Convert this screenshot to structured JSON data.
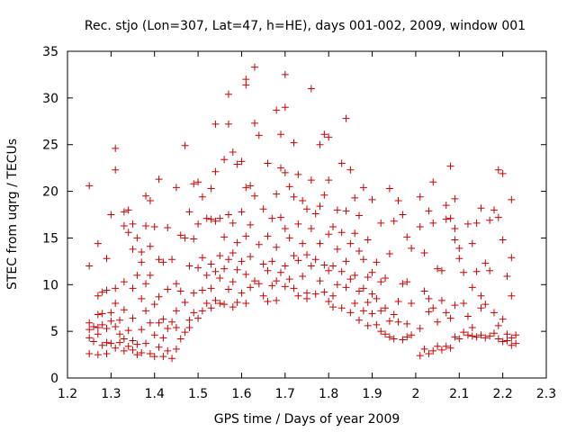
{
  "chart_data": {
    "type": "scatter",
    "title": "Rec. stjo (Lon=307, Lat=47, h=HE), days 001-002, 2009, window 001",
    "xlabel": "GPS time / Days of year 2009",
    "ylabel": "STEC from uqrg / TECUs",
    "xlim": [
      1.2,
      2.3
    ],
    "ylim": [
      0,
      35
    ],
    "x_ticks": [
      "1.2",
      "1.3",
      "1.4",
      "1.5",
      "1.6",
      "1.7",
      "1.8",
      "1.9",
      "2",
      "2.1",
      "2.2",
      "2.3"
    ],
    "y_ticks": [
      "0",
      "5",
      "10",
      "15",
      "20",
      "25",
      "30",
      "35"
    ],
    "marker": "+",
    "marker_color": "#cc0000",
    "grid": false,
    "legend": "none",
    "points": [
      [
        1.25,
        20.6
      ],
      [
        1.25,
        12.0
      ],
      [
        1.25,
        5.9
      ],
      [
        1.25,
        5.2
      ],
      [
        1.25,
        4.3
      ],
      [
        1.25,
        2.6
      ],
      [
        1.26,
        5.5
      ],
      [
        1.26,
        3.9
      ],
      [
        1.27,
        14.4
      ],
      [
        1.27,
        8.8
      ],
      [
        1.27,
        6.8
      ],
      [
        1.27,
        5.4
      ],
      [
        1.27,
        4.7
      ],
      [
        1.27,
        2.5
      ],
      [
        1.28,
        9.2
      ],
      [
        1.28,
        6.9
      ],
      [
        1.28,
        5.7
      ],
      [
        1.28,
        3.5
      ],
      [
        1.29,
        12.8
      ],
      [
        1.29,
        9.4
      ],
      [
        1.29,
        5.3
      ],
      [
        1.29,
        3.8
      ],
      [
        1.29,
        2.6
      ],
      [
        1.3,
        17.5
      ],
      [
        1.3,
        7.0
      ],
      [
        1.3,
        6.1
      ],
      [
        1.3,
        3.7
      ],
      [
        1.31,
        24.6
      ],
      [
        1.31,
        22.3
      ],
      [
        1.31,
        9.6
      ],
      [
        1.31,
        8.0
      ],
      [
        1.31,
        5.5
      ],
      [
        1.31,
        3.2
      ],
      [
        1.32,
        6.2
      ],
      [
        1.32,
        4.7
      ],
      [
        1.32,
        3.8
      ],
      [
        1.33,
        17.8
      ],
      [
        1.33,
        16.3
      ],
      [
        1.33,
        10.3
      ],
      [
        1.33,
        7.3
      ],
      [
        1.33,
        4.2
      ],
      [
        1.33,
        2.9
      ],
      [
        1.34,
        18.0
      ],
      [
        1.34,
        15.6
      ],
      [
        1.34,
        5.1
      ],
      [
        1.34,
        3.4
      ],
      [
        1.35,
        16.5
      ],
      [
        1.35,
        13.8
      ],
      [
        1.35,
        9.6
      ],
      [
        1.35,
        6.4
      ],
      [
        1.35,
        4.0
      ],
      [
        1.35,
        3.0
      ],
      [
        1.36,
        15.0
      ],
      [
        1.36,
        11.0
      ],
      [
        1.36,
        3.6
      ],
      [
        1.36,
        2.5
      ],
      [
        1.37,
        13.5
      ],
      [
        1.37,
        12.4
      ],
      [
        1.37,
        8.5
      ],
      [
        1.37,
        5.2
      ],
      [
        1.37,
        2.7
      ],
      [
        1.38,
        19.5
      ],
      [
        1.38,
        16.3
      ],
      [
        1.38,
        10.1
      ],
      [
        1.38,
        7.2
      ],
      [
        1.38,
        3.7
      ],
      [
        1.39,
        19.0
      ],
      [
        1.39,
        14.1
      ],
      [
        1.39,
        11.0
      ],
      [
        1.39,
        5.9
      ],
      [
        1.39,
        2.6
      ],
      [
        1.4,
        16.2
      ],
      [
        1.4,
        7.9
      ],
      [
        1.4,
        4.6
      ],
      [
        1.4,
        2.3
      ],
      [
        1.41,
        21.3
      ],
      [
        1.41,
        12.7
      ],
      [
        1.41,
        8.7
      ],
      [
        1.41,
        5.9
      ],
      [
        1.41,
        3.3
      ],
      [
        1.42,
        12.4
      ],
      [
        1.42,
        6.3
      ],
      [
        1.42,
        4.3
      ],
      [
        1.42,
        2.3
      ],
      [
        1.43,
        16.1
      ],
      [
        1.43,
        9.5
      ],
      [
        1.43,
        5.3
      ],
      [
        1.43,
        2.9
      ],
      [
        1.44,
        12.7
      ],
      [
        1.44,
        6.0
      ],
      [
        1.44,
        2.1
      ],
      [
        1.45,
        20.4
      ],
      [
        1.45,
        10.1
      ],
      [
        1.45,
        7.2
      ],
      [
        1.45,
        5.4
      ],
      [
        1.45,
        3.1
      ],
      [
        1.46,
        15.3
      ],
      [
        1.46,
        9.3
      ],
      [
        1.46,
        4.2
      ],
      [
        1.47,
        24.9
      ],
      [
        1.47,
        15.0
      ],
      [
        1.47,
        8.1
      ],
      [
        1.47,
        4.9
      ],
      [
        1.48,
        17.8
      ],
      [
        1.48,
        12.0
      ],
      [
        1.48,
        6.2
      ],
      [
        1.48,
        5.4
      ],
      [
        1.49,
        20.8
      ],
      [
        1.49,
        14.9
      ],
      [
        1.49,
        9.1
      ],
      [
        1.49,
        7.0
      ],
      [
        1.5,
        21.0
      ],
      [
        1.5,
        16.5
      ],
      [
        1.5,
        11.8
      ],
      [
        1.5,
        6.4
      ],
      [
        1.51,
        19.4
      ],
      [
        1.51,
        12.9
      ],
      [
        1.51,
        9.4
      ],
      [
        1.51,
        7.2
      ],
      [
        1.52,
        17.1
      ],
      [
        1.52,
        11.0
      ],
      [
        1.52,
        8.0
      ],
      [
        1.53,
        20.3
      ],
      [
        1.53,
        17.0
      ],
      [
        1.53,
        12.2
      ],
      [
        1.53,
        9.6
      ],
      [
        1.53,
        7.5
      ],
      [
        1.54,
        27.2
      ],
      [
        1.54,
        22.1
      ],
      [
        1.54,
        16.8
      ],
      [
        1.54,
        11.4
      ],
      [
        1.54,
        8.3
      ],
      [
        1.55,
        17.1
      ],
      [
        1.55,
        13.1
      ],
      [
        1.55,
        10.7
      ],
      [
        1.55,
        8.0
      ],
      [
        1.56,
        23.4
      ],
      [
        1.56,
        15.1
      ],
      [
        1.56,
        11.7
      ],
      [
        1.56,
        7.9
      ],
      [
        1.57,
        30.4
      ],
      [
        1.57,
        27.2
      ],
      [
        1.57,
        17.5
      ],
      [
        1.57,
        12.7
      ],
      [
        1.57,
        9.5
      ],
      [
        1.58,
        24.2
      ],
      [
        1.58,
        16.6
      ],
      [
        1.58,
        13.4
      ],
      [
        1.58,
        10.3
      ],
      [
        1.58,
        7.6
      ],
      [
        1.59,
        22.9
      ],
      [
        1.59,
        14.5
      ],
      [
        1.59,
        11.6
      ],
      [
        1.59,
        8.1
      ],
      [
        1.6,
        23.2
      ],
      [
        1.6,
        17.8
      ],
      [
        1.6,
        12.5
      ],
      [
        1.6,
        9.1
      ],
      [
        1.61,
        31.4
      ],
      [
        1.61,
        32.0
      ],
      [
        1.61,
        20.4
      ],
      [
        1.61,
        15.2
      ],
      [
        1.61,
        11.1
      ],
      [
        1.61,
        8.0
      ],
      [
        1.62,
        20.6
      ],
      [
        1.62,
        16.4
      ],
      [
        1.62,
        13.0
      ],
      [
        1.62,
        9.7
      ],
      [
        1.63,
        33.3
      ],
      [
        1.63,
        27.3
      ],
      [
        1.63,
        19.5
      ],
      [
        1.63,
        10.4
      ],
      [
        1.64,
        26.0
      ],
      [
        1.64,
        14.3
      ],
      [
        1.64,
        10.1
      ],
      [
        1.65,
        18.1
      ],
      [
        1.65,
        12.2
      ],
      [
        1.65,
        8.8
      ],
      [
        1.66,
        23.0
      ],
      [
        1.66,
        15.2
      ],
      [
        1.66,
        11.5
      ],
      [
        1.66,
        8.2
      ],
      [
        1.67,
        17.1
      ],
      [
        1.67,
        12.5
      ],
      [
        1.67,
        9.9
      ],
      [
        1.68,
        28.7
      ],
      [
        1.68,
        19.7
      ],
      [
        1.68,
        14.0
      ],
      [
        1.68,
        10.4
      ],
      [
        1.68,
        8.3
      ],
      [
        1.69,
        26.1
      ],
      [
        1.69,
        22.5
      ],
      [
        1.69,
        17.2
      ],
      [
        1.69,
        11.3
      ],
      [
        1.7,
        32.5
      ],
      [
        1.7,
        29.0
      ],
      [
        1.7,
        22.0
      ],
      [
        1.7,
        16.0
      ],
      [
        1.7,
        12.0
      ],
      [
        1.7,
        9.8
      ],
      [
        1.71,
        20.5
      ],
      [
        1.71,
        15.0
      ],
      [
        1.71,
        10.6
      ],
      [
        1.72,
        25.2
      ],
      [
        1.72,
        19.4
      ],
      [
        1.72,
        13.1
      ],
      [
        1.72,
        9.6
      ],
      [
        1.73,
        21.8
      ],
      [
        1.73,
        16.5
      ],
      [
        1.73,
        12.6
      ],
      [
        1.73,
        8.8
      ],
      [
        1.74,
        19.0
      ],
      [
        1.74,
        14.4
      ],
      [
        1.74,
        10.9
      ],
      [
        1.75,
        18.1
      ],
      [
        1.75,
        13.2
      ],
      [
        1.75,
        9.1
      ],
      [
        1.75,
        8.5
      ],
      [
        1.76,
        31.0
      ],
      [
        1.76,
        21.2
      ],
      [
        1.76,
        16.0
      ],
      [
        1.76,
        12.0
      ],
      [
        1.77,
        17.6
      ],
      [
        1.77,
        12.7
      ],
      [
        1.77,
        9.0
      ],
      [
        1.78,
        25.0
      ],
      [
        1.78,
        18.4
      ],
      [
        1.78,
        14.4
      ],
      [
        1.78,
        10.4
      ],
      [
        1.79,
        26.1
      ],
      [
        1.79,
        19.6
      ],
      [
        1.79,
        12.1
      ],
      [
        1.79,
        9.2
      ],
      [
        1.8,
        25.8
      ],
      [
        1.8,
        21.2
      ],
      [
        1.8,
        15.4
      ],
      [
        1.8,
        11.5
      ],
      [
        1.8,
        8.2
      ],
      [
        1.81,
        16.2
      ],
      [
        1.81,
        12.0
      ],
      [
        1.81,
        8.8
      ],
      [
        1.81,
        7.6
      ],
      [
        1.82,
        18.0
      ],
      [
        1.82,
        13.8
      ],
      [
        1.82,
        10.0
      ],
      [
        1.83,
        23.0
      ],
      [
        1.83,
        15.6
      ],
      [
        1.83,
        11.4
      ],
      [
        1.83,
        7.5
      ],
      [
        1.84,
        27.8
      ],
      [
        1.84,
        17.9
      ],
      [
        1.84,
        12.5
      ],
      [
        1.84,
        9.7
      ],
      [
        1.85,
        22.3
      ],
      [
        1.85,
        14.4
      ],
      [
        1.85,
        10.6
      ],
      [
        1.85,
        7.0
      ],
      [
        1.86,
        19.3
      ],
      [
        1.86,
        15.5
      ],
      [
        1.86,
        11.0
      ],
      [
        1.86,
        8.0
      ],
      [
        1.87,
        17.4
      ],
      [
        1.87,
        13.6
      ],
      [
        1.87,
        9.3
      ],
      [
        1.87,
        6.2
      ],
      [
        1.88,
        20.4
      ],
      [
        1.88,
        12.7
      ],
      [
        1.88,
        9.6
      ],
      [
        1.88,
        7.2
      ],
      [
        1.89,
        14.8
      ],
      [
        1.89,
        10.8
      ],
      [
        1.89,
        8.1
      ],
      [
        1.89,
        5.6
      ],
      [
        1.9,
        19.1
      ],
      [
        1.9,
        11.3
      ],
      [
        1.9,
        9.0
      ],
      [
        1.9,
        6.9
      ],
      [
        1.91,
        12.4
      ],
      [
        1.91,
        8.5
      ],
      [
        1.91,
        5.7
      ],
      [
        1.92,
        16.6
      ],
      [
        1.92,
        10.3
      ],
      [
        1.92,
        7.2
      ],
      [
        1.92,
        5.0
      ],
      [
        1.93,
        10.7
      ],
      [
        1.93,
        7.5
      ],
      [
        1.93,
        4.7
      ],
      [
        1.94,
        20.3
      ],
      [
        1.94,
        13.3
      ],
      [
        1.94,
        6.1
      ],
      [
        1.94,
        4.4
      ],
      [
        1.95,
        16.8
      ],
      [
        1.95,
        6.8
      ],
      [
        1.95,
        4.2
      ],
      [
        1.96,
        19.0
      ],
      [
        1.96,
        8.2
      ],
      [
        1.96,
        6.0
      ],
      [
        1.97,
        17.5
      ],
      [
        1.97,
        10.1
      ],
      [
        1.97,
        4.1
      ],
      [
        1.98,
        15.1
      ],
      [
        1.98,
        10.3
      ],
      [
        1.98,
        5.8
      ],
      [
        1.98,
        4.4
      ],
      [
        1.99,
        13.9
      ],
      [
        1.99,
        8.0
      ],
      [
        1.99,
        4.6
      ],
      [
        2.01,
        19.4
      ],
      [
        2.01,
        16.2
      ],
      [
        2.01,
        5.3
      ],
      [
        2.01,
        2.4
      ],
      [
        2.02,
        13.4
      ],
      [
        2.02,
        9.3
      ],
      [
        2.02,
        3.1
      ],
      [
        2.03,
        17.9
      ],
      [
        2.03,
        8.5
      ],
      [
        2.03,
        7.1
      ],
      [
        2.03,
        2.6
      ],
      [
        2.04,
        21.0
      ],
      [
        2.04,
        16.6
      ],
      [
        2.04,
        7.5
      ],
      [
        2.04,
        2.9
      ],
      [
        2.05,
        11.7
      ],
      [
        2.05,
        6.0
      ],
      [
        2.05,
        3.4
      ],
      [
        2.06,
        11.5
      ],
      [
        2.06,
        8.3
      ],
      [
        2.06,
        3.0
      ],
      [
        2.07,
        18.5
      ],
      [
        2.07,
        17.0
      ],
      [
        2.07,
        7.0
      ],
      [
        2.07,
        3.4
      ],
      [
        2.08,
        22.7
      ],
      [
        2.08,
        17.1
      ],
      [
        2.08,
        6.4
      ],
      [
        2.08,
        3.2
      ],
      [
        2.09,
        19.2
      ],
      [
        2.09,
        16.0
      ],
      [
        2.09,
        14.8
      ],
      [
        2.09,
        7.8
      ],
      [
        2.09,
        4.4
      ],
      [
        2.1,
        13.9
      ],
      [
        2.1,
        12.8
      ],
      [
        2.1,
        4.2
      ],
      [
        2.11,
        11.3
      ],
      [
        2.11,
        8.0
      ],
      [
        2.11,
        4.9
      ],
      [
        2.12,
        16.5
      ],
      [
        2.12,
        6.6
      ],
      [
        2.12,
        4.6
      ],
      [
        2.13,
        14.4
      ],
      [
        2.13,
        9.7
      ],
      [
        2.13,
        5.4
      ],
      [
        2.13,
        4.5
      ],
      [
        2.14,
        16.6
      ],
      [
        2.14,
        11.4
      ],
      [
        2.14,
        4.4
      ],
      [
        2.15,
        18.2
      ],
      [
        2.15,
        8.8
      ],
      [
        2.15,
        7.5
      ],
      [
        2.15,
        4.6
      ],
      [
        2.16,
        12.3
      ],
      [
        2.16,
        7.9
      ],
      [
        2.16,
        4.3
      ],
      [
        2.17,
        16.9
      ],
      [
        2.17,
        11.5
      ],
      [
        2.17,
        4.5
      ],
      [
        2.18,
        18.0
      ],
      [
        2.18,
        7.0
      ],
      [
        2.18,
        4.8
      ],
      [
        2.19,
        22.3
      ],
      [
        2.19,
        17.2
      ],
      [
        2.19,
        5.6
      ],
      [
        2.19,
        4.2
      ],
      [
        2.2,
        21.9
      ],
      [
        2.2,
        14.8
      ],
      [
        2.2,
        6.3
      ],
      [
        2.2,
        3.9
      ],
      [
        2.21,
        10.9
      ],
      [
        2.21,
        4.7
      ],
      [
        2.21,
        4.0
      ],
      [
        2.22,
        19.1
      ],
      [
        2.22,
        12.9
      ],
      [
        2.22,
        8.8
      ],
      [
        2.22,
        4.3
      ],
      [
        2.22,
        3.5
      ],
      [
        2.23,
        4.6
      ],
      [
        2.23,
        3.7
      ]
    ]
  }
}
